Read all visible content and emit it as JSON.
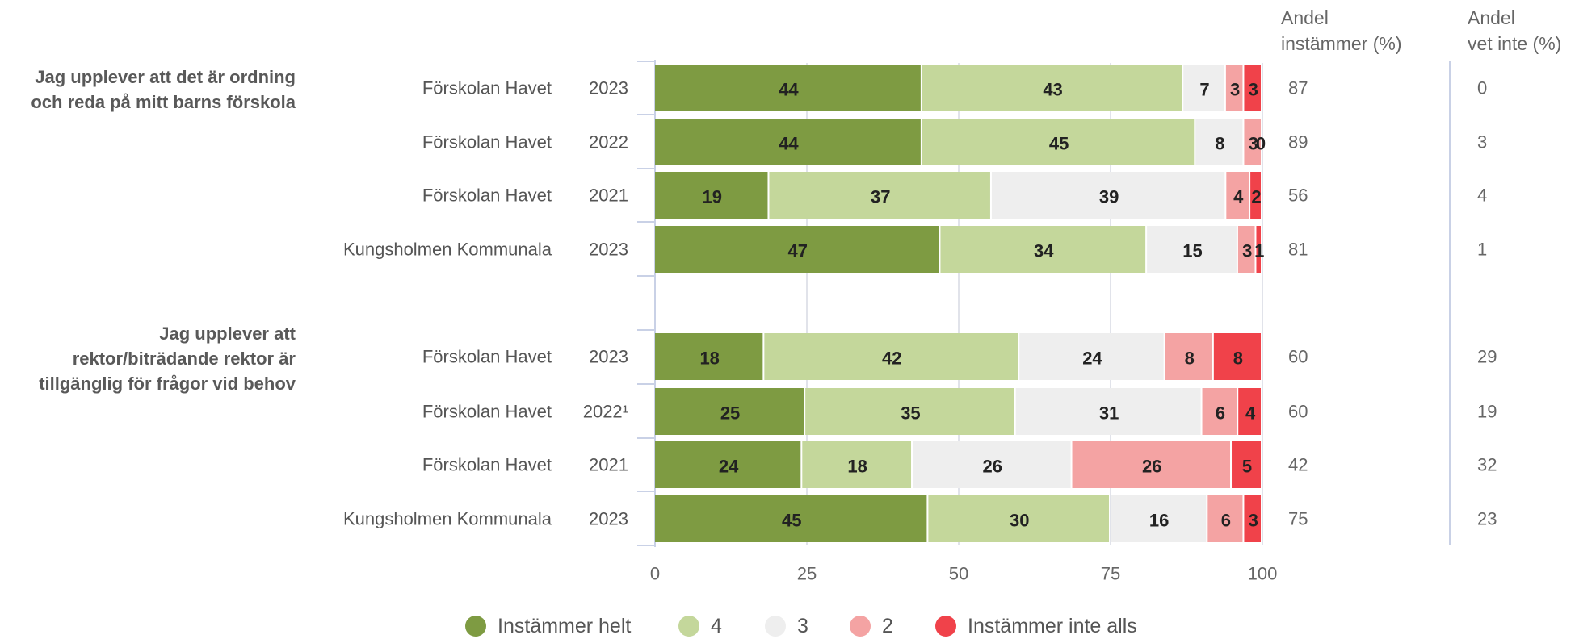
{
  "chart_data": {
    "type": "bar",
    "orientation": "horizontal",
    "stacked": true,
    "xlim": [
      0,
      100
    ],
    "xticks": [
      0,
      25,
      50,
      75,
      100
    ],
    "grid": true,
    "legend_position": "bottom",
    "series": [
      {
        "name": "Instämmer helt",
        "color": "#7E9B42"
      },
      {
        "name": "4",
        "color": "#C4D79B"
      },
      {
        "name": "3",
        "color": "#EEEEEE"
      },
      {
        "name": "2",
        "color": "#F4A3A3"
      },
      {
        "name": "Instämmer inte alls",
        "color": "#F0424A"
      }
    ],
    "column_headers": {
      "agree": [
        "Andel",
        "instämmer (%)"
      ],
      "dontknow": [
        "Andel",
        "vet inte (%)"
      ]
    },
    "groups": [
      {
        "question": [
          "Jag upplever att det är ordning",
          "och reda på mitt barns förskola"
        ],
        "rows": [
          {
            "label": "Förskolan Havet",
            "year": "2023",
            "values": [
              44,
              43,
              7,
              3,
              3
            ],
            "agree": "87",
            "dontknow": "0"
          },
          {
            "label": "Förskolan Havet",
            "year": "2022",
            "values": [
              44,
              45,
              8,
              3,
              0
            ],
            "agree": "89",
            "dontknow": "3"
          },
          {
            "label": "Förskolan Havet",
            "year": "2021",
            "values": [
              19,
              37,
              39,
              4,
              2
            ],
            "agree": "56",
            "dontknow": "4"
          },
          {
            "label": "Kungsholmen Kommunala",
            "year": "2023",
            "values": [
              47,
              34,
              15,
              3,
              1
            ],
            "agree": "81",
            "dontknow": "1"
          }
        ]
      },
      {
        "question": [
          "Jag upplever att",
          "rektor/biträdande rektor är",
          "tillgänglig för frågor vid behov"
        ],
        "rows": [
          {
            "label": "Förskolan Havet",
            "year": "2023",
            "values": [
              18,
              42,
              24,
              8,
              8
            ],
            "agree": "60",
            "dontknow": "29"
          },
          {
            "label": "Förskolan Havet",
            "year": "2022¹",
            "values": [
              25,
              35,
              31,
              6,
              4
            ],
            "agree": "60",
            "dontknow": "19"
          },
          {
            "label": "Förskolan Havet",
            "year": "2021",
            "values": [
              24,
              18,
              26,
              26,
              5
            ],
            "agree": "42",
            "dontknow": "32"
          },
          {
            "label": "Kungsholmen Kommunala",
            "year": "2023",
            "values": [
              45,
              30,
              16,
              6,
              3
            ],
            "agree": "75",
            "dontknow": "23"
          }
        ]
      }
    ]
  }
}
